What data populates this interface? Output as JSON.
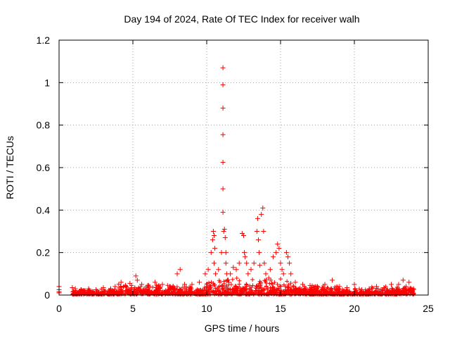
{
  "chart_data": {
    "type": "scatter",
    "title": "Day 194 of 2024, Rate Of TEC Index for receiver walh",
    "xlabel": "GPS time / hours",
    "ylabel": "ROTI / TECUs",
    "xlim": [
      0,
      25
    ],
    "ylim": [
      0,
      1.2
    ],
    "xticks": [
      0,
      5,
      10,
      15,
      20,
      25
    ],
    "yticks": [
      0,
      0.2,
      0.4,
      0.6,
      0.8,
      1,
      1.2
    ],
    "xtick_labels": [
      "0",
      "5",
      "10",
      "15",
      "20",
      "25"
    ],
    "ytick_labels": [
      "0",
      "0.2",
      "0.4",
      "0.6",
      "0.8",
      "1",
      "1.2"
    ],
    "grid": true,
    "marker": "plus",
    "color": "#ff0000",
    "x": [
      0,
      0,
      0,
      0,
      0.9,
      1.1,
      1.5,
      2.0,
      2.5,
      3.0,
      3.5,
      3.8,
      4.2,
      4.5,
      4.8,
      5.2,
      5.3,
      5.6,
      6.0,
      6.5,
      7.0,
      7.5,
      8.0,
      8.2,
      8.5,
      9.0,
      9.5,
      9.9,
      10.1,
      10.3,
      10.4,
      10.45,
      10.5,
      10.5,
      10.55,
      10.6,
      10.8,
      11.0,
      11.1,
      11.1,
      11.1,
      11.1,
      11.1,
      11.1,
      11.1,
      11.15,
      11.2,
      11.25,
      11.3,
      11.3,
      11.35,
      11.4,
      11.5,
      11.6,
      11.8,
      12.0,
      12.2,
      12.4,
      12.5,
      12.55,
      12.6,
      12.7,
      12.8,
      13.0,
      13.2,
      13.4,
      13.45,
      13.5,
      13.55,
      13.6,
      13.7,
      13.8,
      13.85,
      13.9,
      14.0,
      14.2,
      14.3,
      14.5,
      14.7,
      14.8,
      14.9,
      15.0,
      15.1,
      15.2,
      15.4,
      15.5,
      15.6,
      15.7,
      16.0,
      16.5,
      17.0,
      17.5,
      18.0,
      18.5,
      19.0,
      19.5,
      20.0,
      20.5,
      21.0,
      21.5,
      22.0,
      22.5,
      23.0,
      23.3,
      23.5,
      23.7,
      24.0
    ],
    "y": [
      0.04,
      0.025,
      0.015,
      0.01,
      0.035,
      0.03,
      0.025,
      0.03,
      0.025,
      0.035,
      0.03,
      0.04,
      0.06,
      0.045,
      0.055,
      0.09,
      0.07,
      0.05,
      0.045,
      0.06,
      0.05,
      0.04,
      0.1,
      0.12,
      0.05,
      0.05,
      0.06,
      0.1,
      0.12,
      0.2,
      0.26,
      0.3,
      0.28,
      0.15,
      0.22,
      0.1,
      0.12,
      0.2,
      1.07,
      0.99,
      0.88,
      0.755,
      0.625,
      0.5,
      0.39,
      0.3,
      0.31,
      0.27,
      0.2,
      0.15,
      0.1,
      0.07,
      0.06,
      0.1,
      0.13,
      0.12,
      0.15,
      0.29,
      0.28,
      0.2,
      0.18,
      0.15,
      0.1,
      0.12,
      0.15,
      0.3,
      0.36,
      0.26,
      0.2,
      0.14,
      0.38,
      0.41,
      0.3,
      0.15,
      0.1,
      0.08,
      0.12,
      0.18,
      0.2,
      0.24,
      0.22,
      0.15,
      0.12,
      0.1,
      0.2,
      0.18,
      0.15,
      0.1,
      0.06,
      0.05,
      0.045,
      0.04,
      0.05,
      0.07,
      0.04,
      0.035,
      0.05,
      0.025,
      0.03,
      0.04,
      0.035,
      0.05,
      0.05,
      0.07,
      0.04,
      0.06,
      0.03
    ]
  }
}
